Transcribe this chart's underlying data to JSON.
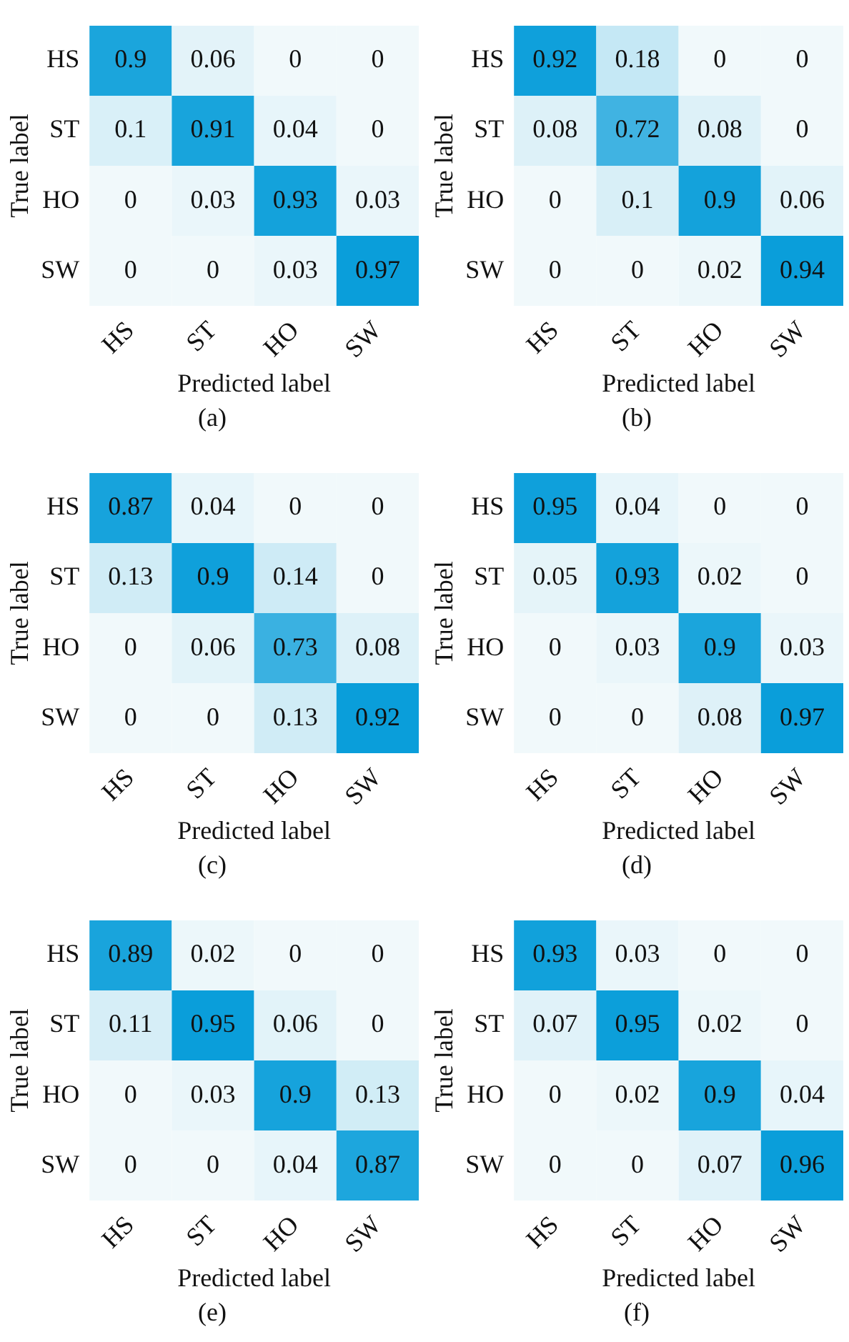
{
  "chart_data": [
    {
      "type": "heatmap",
      "xlabel": "Predicted label",
      "ylabel": "True label",
      "annotations": [
        "(a)"
      ],
      "categories": [
        "HS",
        "ST",
        "HO",
        "SW"
      ],
      "y_categories": [
        "HS",
        "ST",
        "HO",
        "SW"
      ],
      "data_labels": true,
      "grid": false,
      "cells": [
        [
          0.9,
          0.06,
          0,
          0
        ],
        [
          0.1,
          0.91,
          0.04,
          0
        ],
        [
          0,
          0.03,
          0.93,
          0.03
        ],
        [
          0,
          0,
          0.03,
          0.97
        ]
      ]
    },
    {
      "type": "heatmap",
      "xlabel": "Predicted label",
      "ylabel": "True label",
      "annotations": [
        "(b)"
      ],
      "categories": [
        "HS",
        "ST",
        "HO",
        "SW"
      ],
      "y_categories": [
        "HS",
        "ST",
        "HO",
        "SW"
      ],
      "data_labels": true,
      "grid": false,
      "cells": [
        [
          0.92,
          0.18,
          0,
          0
        ],
        [
          0.08,
          0.72,
          0.08,
          0
        ],
        [
          0,
          0.1,
          0.9,
          0.06
        ],
        [
          0,
          0,
          0.02,
          0.94
        ]
      ]
    },
    {
      "type": "heatmap",
      "xlabel": "Predicted label",
      "ylabel": "True label",
      "annotations": [
        "(c)"
      ],
      "categories": [
        "HS",
        "ST",
        "HO",
        "SW"
      ],
      "y_categories": [
        "HS",
        "ST",
        "HO",
        "SW"
      ],
      "data_labels": true,
      "grid": false,
      "cells": [
        [
          0.87,
          0.04,
          0,
          0
        ],
        [
          0.13,
          0.9,
          0.14,
          0
        ],
        [
          0,
          0.06,
          0.73,
          0.08
        ],
        [
          0,
          0,
          0.13,
          0.92
        ]
      ]
    },
    {
      "type": "heatmap",
      "xlabel": "Predicted label",
      "ylabel": "True label",
      "annotations": [
        "(d)"
      ],
      "categories": [
        "HS",
        "ST",
        "HO",
        "SW"
      ],
      "y_categories": [
        "HS",
        "ST",
        "HO",
        "SW"
      ],
      "data_labels": true,
      "grid": false,
      "cells": [
        [
          0.95,
          0.04,
          0,
          0
        ],
        [
          0.05,
          0.93,
          0.02,
          0
        ],
        [
          0,
          0.03,
          0.9,
          0.03
        ],
        [
          0,
          0,
          0.08,
          0.97
        ]
      ]
    },
    {
      "type": "heatmap",
      "xlabel": "Predicted label",
      "ylabel": "True label",
      "annotations": [
        "(e)"
      ],
      "categories": [
        "HS",
        "ST",
        "HO",
        "SW"
      ],
      "y_categories": [
        "HS",
        "ST",
        "HO",
        "SW"
      ],
      "data_labels": true,
      "grid": false,
      "cells": [
        [
          0.89,
          0.02,
          0,
          0
        ],
        [
          0.11,
          0.95,
          0.06,
          0
        ],
        [
          0,
          0.03,
          0.9,
          0.13
        ],
        [
          0,
          0,
          0.04,
          0.87
        ]
      ]
    },
    {
      "type": "heatmap",
      "xlabel": "Predicted label",
      "ylabel": "True label",
      "annotations": [
        "(f)"
      ],
      "categories": [
        "HS",
        "ST",
        "HO",
        "SW"
      ],
      "y_categories": [
        "HS",
        "ST",
        "HO",
        "SW"
      ],
      "data_labels": true,
      "grid": false,
      "cells": [
        [
          0.93,
          0.03,
          0,
          0
        ],
        [
          0.07,
          0.95,
          0.02,
          0
        ],
        [
          0,
          0.02,
          0.9,
          0.04
        ],
        [
          0,
          0,
          0.07,
          0.96
        ]
      ]
    }
  ]
}
